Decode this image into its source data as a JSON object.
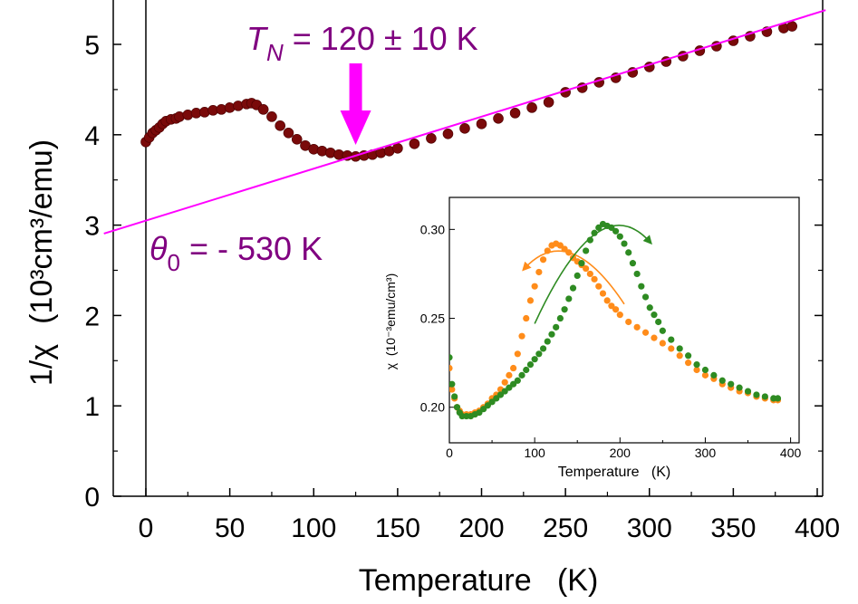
{
  "chart_data": [
    {
      "type": "scatter",
      "title": "",
      "xlabel": "Temperature   (K)",
      "ylabel_main": "1/χ",
      "ylabel_units": "(10³cm³/emu)",
      "xlim": [
        -20,
        400
      ],
      "ylim": [
        0,
        5.5
      ],
      "x_ticks": [
        "0",
        "50",
        "100",
        "150",
        "200",
        "250",
        "300",
        "350",
        "400"
      ],
      "y_ticks": [
        "0",
        "1",
        "2",
        "3",
        "4",
        "5"
      ],
      "grid": false,
      "annotations": {
        "tn_label": {
          "symbol": "T",
          "subscript": "N",
          "text": "= 120 ± 10 K"
        },
        "theta_label": {
          "symbol": "θ",
          "subscript": "0",
          "text": "= - 530 K"
        }
      },
      "arrow_x": 125,
      "colors": {
        "data": "#7a0a0a",
        "fit_line": "#ff00ff",
        "annotation": "#800080",
        "arrow": "#ff00ff"
      },
      "fit_line": {
        "intercept": 3.05,
        "slope": 0.00575,
        "x_range": [
          -25,
          405
        ]
      },
      "series": [
        {
          "points": [
            [
              0,
              3.92
            ],
            [
              2,
              3.97
            ],
            [
              4,
              4.02
            ],
            [
              6,
              4.05
            ],
            [
              8,
              4.08
            ],
            [
              10,
              4.12
            ],
            [
              12,
              4.15
            ],
            [
              15,
              4.17
            ],
            [
              18,
              4.18
            ],
            [
              20,
              4.2
            ],
            [
              25,
              4.22
            ],
            [
              30,
              4.24
            ],
            [
              35,
              4.25
            ],
            [
              40,
              4.27
            ],
            [
              45,
              4.28
            ],
            [
              50,
              4.3
            ],
            [
              55,
              4.32
            ],
            [
              60,
              4.34
            ],
            [
              63,
              4.35
            ],
            [
              66,
              4.33
            ],
            [
              70,
              4.28
            ],
            [
              75,
              4.2
            ],
            [
              80,
              4.1
            ],
            [
              85,
              4.02
            ],
            [
              90,
              3.95
            ],
            [
              95,
              3.88
            ],
            [
              100,
              3.84
            ],
            [
              105,
              3.82
            ],
            [
              110,
              3.8
            ],
            [
              115,
              3.78
            ],
            [
              120,
              3.77
            ],
            [
              125,
              3.76
            ],
            [
              130,
              3.77
            ],
            [
              135,
              3.78
            ],
            [
              140,
              3.8
            ],
            [
              145,
              3.82
            ],
            [
              150,
              3.85
            ],
            [
              160,
              3.9
            ],
            [
              170,
              3.96
            ],
            [
              180,
              4.01
            ],
            [
              190,
              4.07
            ],
            [
              200,
              4.12
            ],
            [
              210,
              4.18
            ],
            [
              220,
              4.24
            ],
            [
              230,
              4.3
            ],
            [
              240,
              4.36
            ],
            [
              250,
              4.47
            ],
            [
              260,
              4.52
            ],
            [
              270,
              4.58
            ],
            [
              280,
              4.63
            ],
            [
              290,
              4.69
            ],
            [
              300,
              4.75
            ],
            [
              310,
              4.81
            ],
            [
              320,
              4.87
            ],
            [
              330,
              4.93
            ],
            [
              340,
              4.98
            ],
            [
              350,
              5.04
            ],
            [
              360,
              5.09
            ],
            [
              370,
              5.14
            ],
            [
              380,
              5.18
            ],
            [
              385,
              5.2
            ]
          ]
        }
      ]
    },
    {
      "type": "scatter",
      "xlabel": "Temperature   (K)",
      "ylabel": "χ  (10⁻³emu/cm³)",
      "xlim": [
        0,
        410
      ],
      "ylim": [
        0.18,
        0.318
      ],
      "x_ticks": [
        "0",
        "100",
        "200",
        "300",
        "400"
      ],
      "y_ticks": [
        "0.20",
        "0.25",
        "0.30"
      ],
      "grid": false,
      "series": [
        {
          "color": "#ff8c1a",
          "points": [
            [
              0,
              0.222
            ],
            [
              3,
              0.21
            ],
            [
              6,
              0.205
            ],
            [
              9,
              0.2
            ],
            [
              12,
              0.198
            ],
            [
              15,
              0.196
            ],
            [
              20,
              0.196
            ],
            [
              25,
              0.196
            ],
            [
              30,
              0.197
            ],
            [
              35,
              0.198
            ],
            [
              40,
              0.2
            ],
            [
              45,
              0.202
            ],
            [
              50,
              0.205
            ],
            [
              55,
              0.207
            ],
            [
              60,
              0.21
            ],
            [
              65,
              0.214
            ],
            [
              70,
              0.218
            ],
            [
              75,
              0.222
            ],
            [
              80,
              0.23
            ],
            [
              85,
              0.24
            ],
            [
              90,
              0.25
            ],
            [
              95,
              0.26
            ],
            [
              100,
              0.268
            ],
            [
              105,
              0.276
            ],
            [
              110,
              0.283
            ],
            [
              115,
              0.288
            ],
            [
              120,
              0.291
            ],
            [
              125,
              0.292
            ],
            [
              130,
              0.291
            ],
            [
              135,
              0.289
            ],
            [
              140,
              0.287
            ],
            [
              145,
              0.284
            ],
            [
              150,
              0.282
            ],
            [
              155,
              0.28
            ],
            [
              160,
              0.278
            ],
            [
              165,
              0.275
            ],
            [
              170,
              0.272
            ],
            [
              175,
              0.268
            ],
            [
              180,
              0.264
            ],
            [
              185,
              0.26
            ],
            [
              190,
              0.257
            ],
            [
              195,
              0.255
            ],
            [
              200,
              0.252
            ],
            [
              210,
              0.248
            ],
            [
              220,
              0.245
            ],
            [
              230,
              0.242
            ],
            [
              240,
              0.239
            ],
            [
              250,
              0.236
            ],
            [
              260,
              0.233
            ],
            [
              270,
              0.229
            ],
            [
              280,
              0.225
            ],
            [
              290,
              0.221
            ],
            [
              300,
              0.218
            ],
            [
              310,
              0.216
            ],
            [
              320,
              0.213
            ],
            [
              330,
              0.211
            ],
            [
              340,
              0.209
            ],
            [
              350,
              0.208
            ],
            [
              360,
              0.206
            ],
            [
              370,
              0.205
            ],
            [
              380,
              0.204
            ],
            [
              385,
              0.204
            ]
          ]
        },
        {
          "color": "#2e8b22",
          "points": [
            [
              0,
              0.228
            ],
            [
              3,
              0.213
            ],
            [
              6,
              0.206
            ],
            [
              9,
              0.2
            ],
            [
              12,
              0.197
            ],
            [
              15,
              0.195
            ],
            [
              20,
              0.195
            ],
            [
              25,
              0.195
            ],
            [
              30,
              0.196
            ],
            [
              35,
              0.197
            ],
            [
              40,
              0.199
            ],
            [
              45,
              0.201
            ],
            [
              50,
              0.203
            ],
            [
              55,
              0.205
            ],
            [
              60,
              0.207
            ],
            [
              65,
              0.209
            ],
            [
              70,
              0.211
            ],
            [
              75,
              0.213
            ],
            [
              80,
              0.215
            ],
            [
              85,
              0.218
            ],
            [
              90,
              0.221
            ],
            [
              95,
              0.224
            ],
            [
              100,
              0.227
            ],
            [
              105,
              0.23
            ],
            [
              110,
              0.233
            ],
            [
              115,
              0.237
            ],
            [
              120,
              0.241
            ],
            [
              125,
              0.245
            ],
            [
              130,
              0.25
            ],
            [
              135,
              0.255
            ],
            [
              140,
              0.261
            ],
            [
              145,
              0.267
            ],
            [
              150,
              0.274
            ],
            [
              155,
              0.281
            ],
            [
              160,
              0.288
            ],
            [
              165,
              0.294
            ],
            [
              170,
              0.298
            ],
            [
              175,
              0.301
            ],
            [
              180,
              0.303
            ],
            [
              185,
              0.302
            ],
            [
              190,
              0.301
            ],
            [
              195,
              0.299
            ],
            [
              200,
              0.296
            ],
            [
              205,
              0.292
            ],
            [
              210,
              0.287
            ],
            [
              215,
              0.281
            ],
            [
              220,
              0.275
            ],
            [
              225,
              0.268
            ],
            [
              230,
              0.262
            ],
            [
              235,
              0.256
            ],
            [
              240,
              0.252
            ],
            [
              245,
              0.248
            ],
            [
              250,
              0.243
            ],
            [
              260,
              0.238
            ],
            [
              270,
              0.233
            ],
            [
              280,
              0.229
            ],
            [
              290,
              0.224
            ],
            [
              300,
              0.221
            ],
            [
              310,
              0.218
            ],
            [
              320,
              0.215
            ],
            [
              330,
              0.213
            ],
            [
              340,
              0.211
            ],
            [
              350,
              0.209
            ],
            [
              360,
              0.207
            ],
            [
              370,
              0.206
            ],
            [
              380,
              0.205
            ],
            [
              385,
              0.205
            ]
          ]
        }
      ],
      "arrows": [
        {
          "color": "#ff8c1a",
          "from": [
            205,
            0.258
          ],
          "ctrl": [
            140,
            0.305
          ],
          "to": [
            88,
            0.278
          ]
        },
        {
          "color": "#2e8b22",
          "from": [
            100,
            0.247
          ],
          "ctrl": [
            175,
            0.325
          ],
          "to": [
            235,
            0.293
          ]
        }
      ]
    }
  ]
}
